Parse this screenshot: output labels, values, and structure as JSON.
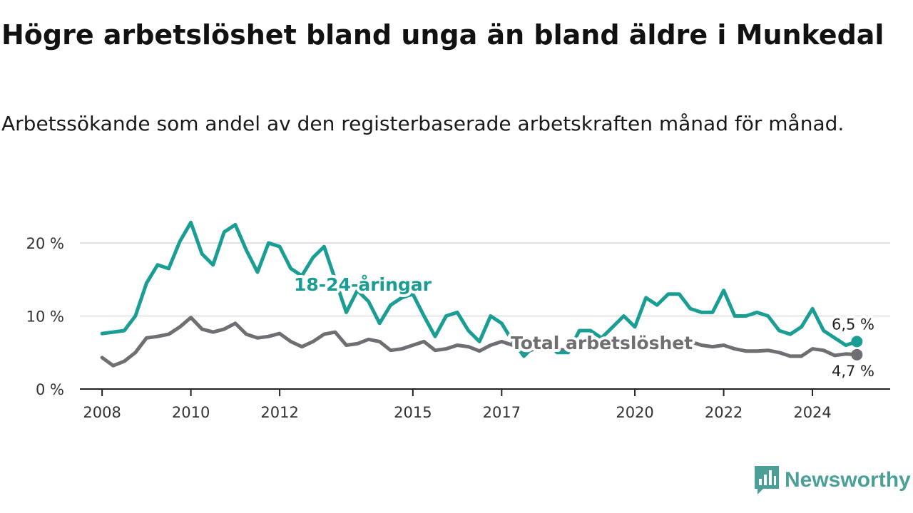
{
  "title": "Högre arbetslöshet bland unga än bland äldre i Munkedal",
  "subtitle": "Arbetssökande som andel av den registerbaserade arbetskraften månad för månad.",
  "brand": {
    "name": "Newsworthy",
    "icon": "newsworthy-logo-icon",
    "color": "#4a9f97"
  },
  "chart_data": {
    "type": "line",
    "title": "Högre arbetslöshet bland unga än bland äldre i Munkedal",
    "subtitle": "Arbetssökande som andel av den registerbaserade arbetskraften månad för månad.",
    "xlabel": "",
    "ylabel": "",
    "xlim": [
      2007.5,
      2025.75
    ],
    "ylim": [
      0,
      20
    ],
    "x_ticks": [
      2008,
      2010,
      2012,
      2015,
      2017,
      2020,
      2022,
      2024
    ],
    "x_tick_labels": [
      "2008",
      "2010",
      "2012",
      "2015",
      "2017",
      "2020",
      "2022",
      "2024"
    ],
    "y_ticks": [
      0,
      10,
      20
    ],
    "y_tick_labels": [
      "0 %",
      "10 %",
      "20 %"
    ],
    "grid": "horizontal",
    "legend": "inline labels",
    "series": [
      {
        "name": "18-24-åringar",
        "color": "#1a9e94",
        "end_label": "6,5 %",
        "x": [
          2008.0,
          2008.25,
          2008.5,
          2008.75,
          2009.0,
          2009.25,
          2009.5,
          2009.75,
          2010.0,
          2010.25,
          2010.5,
          2010.75,
          2011.0,
          2011.25,
          2011.5,
          2011.75,
          2012.0,
          2012.25,
          2012.5,
          2012.75,
          2013.0,
          2013.25,
          2013.5,
          2013.75,
          2014.0,
          2014.25,
          2014.5,
          2014.75,
          2015.0,
          2015.25,
          2015.5,
          2015.75,
          2016.0,
          2016.25,
          2016.5,
          2016.75,
          2017.0,
          2017.25,
          2017.5,
          2017.75,
          2018.0,
          2018.25,
          2018.5,
          2018.75,
          2019.0,
          2019.25,
          2019.5,
          2019.75,
          2020.0,
          2020.25,
          2020.5,
          2020.75,
          2021.0,
          2021.25,
          2021.5,
          2021.75,
          2022.0,
          2022.25,
          2022.5,
          2022.75,
          2023.0,
          2023.25,
          2023.5,
          2023.75,
          2024.0,
          2024.25,
          2024.5,
          2024.75,
          2025.0
        ],
        "values": [
          7.6,
          7.8,
          8.0,
          10.0,
          14.5,
          17.0,
          16.5,
          20.2,
          22.8,
          18.5,
          17.0,
          21.5,
          22.5,
          19.0,
          16.0,
          20.0,
          19.5,
          16.5,
          15.5,
          18.0,
          19.5,
          15.0,
          10.5,
          13.5,
          12.0,
          9.0,
          11.5,
          12.5,
          13.0,
          10.0,
          7.2,
          10.0,
          10.5,
          8.0,
          6.5,
          10.0,
          9.0,
          6.5,
          4.5,
          6.0,
          6.5,
          5.0,
          5.0,
          8.0,
          8.0,
          7.0,
          8.5,
          10.0,
          8.5,
          12.5,
          11.5,
          13.0,
          13.0,
          11.0,
          10.5,
          10.5,
          13.5,
          10.0,
          10.0,
          10.5,
          10.0,
          8.0,
          7.5,
          8.5,
          11.0,
          8.0,
          7.0,
          6.0,
          6.5
        ]
      },
      {
        "name": "Total arbetslöshet",
        "color": "#6e6e73",
        "end_label": "4,7 %",
        "x": [
          2008.0,
          2008.25,
          2008.5,
          2008.75,
          2009.0,
          2009.25,
          2009.5,
          2009.75,
          2010.0,
          2010.25,
          2010.5,
          2010.75,
          2011.0,
          2011.25,
          2011.5,
          2011.75,
          2012.0,
          2012.25,
          2012.5,
          2012.75,
          2013.0,
          2013.25,
          2013.5,
          2013.75,
          2014.0,
          2014.25,
          2014.5,
          2014.75,
          2015.0,
          2015.25,
          2015.5,
          2015.75,
          2016.0,
          2016.25,
          2016.5,
          2016.75,
          2017.0,
          2017.25,
          2017.5,
          2017.75,
          2018.0,
          2018.25,
          2018.5,
          2018.75,
          2019.0,
          2019.25,
          2019.5,
          2019.75,
          2020.0,
          2020.25,
          2020.5,
          2020.75,
          2021.0,
          2021.25,
          2021.5,
          2021.75,
          2022.0,
          2022.25,
          2022.5,
          2022.75,
          2023.0,
          2023.25,
          2023.5,
          2023.75,
          2024.0,
          2024.25,
          2024.5,
          2024.75,
          2025.0
        ],
        "values": [
          4.3,
          3.2,
          3.8,
          5.0,
          7.0,
          7.2,
          7.5,
          8.5,
          9.8,
          8.2,
          7.8,
          8.2,
          9.0,
          7.5,
          7.0,
          7.2,
          7.6,
          6.5,
          5.8,
          6.5,
          7.5,
          7.8,
          6.0,
          6.2,
          6.8,
          6.5,
          5.3,
          5.5,
          6.0,
          6.5,
          5.3,
          5.5,
          6.0,
          5.8,
          5.2,
          6.0,
          6.5,
          6.0,
          5.0,
          5.5,
          6.0,
          5.5,
          5.2,
          5.8,
          6.0,
          6.0,
          6.0,
          6.0,
          6.5,
          6.5,
          6.5,
          6.5,
          6.5,
          6.5,
          6.0,
          5.8,
          6.0,
          5.5,
          5.2,
          5.2,
          5.3,
          5.0,
          4.5,
          4.5,
          5.5,
          5.3,
          4.6,
          4.8,
          4.7
        ]
      }
    ]
  }
}
